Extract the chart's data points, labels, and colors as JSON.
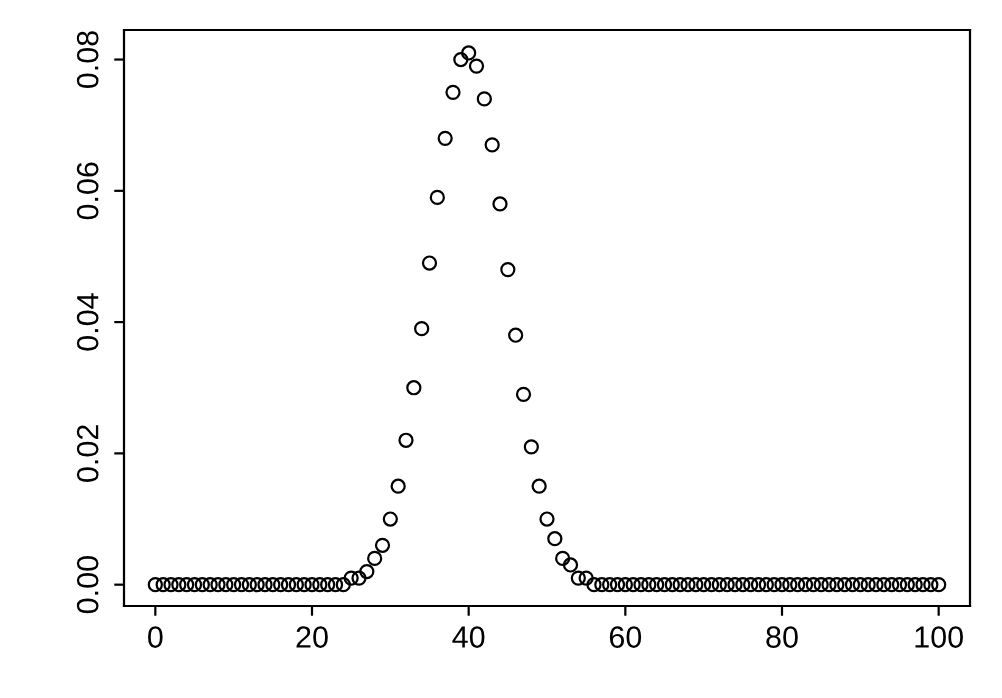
{
  "chart_data": {
    "type": "scatter",
    "marker": "circle",
    "grid": false,
    "x": [
      0,
      1,
      2,
      3,
      4,
      5,
      6,
      7,
      8,
      9,
      10,
      11,
      12,
      13,
      14,
      15,
      16,
      17,
      18,
      19,
      20,
      21,
      22,
      23,
      24,
      25,
      26,
      27,
      28,
      29,
      30,
      31,
      32,
      33,
      34,
      35,
      36,
      37,
      38,
      39,
      40,
      41,
      42,
      43,
      44,
      45,
      46,
      47,
      48,
      49,
      50,
      51,
      52,
      53,
      54,
      55,
      56,
      57,
      58,
      59,
      60,
      61,
      62,
      63,
      64,
      65,
      66,
      67,
      68,
      69,
      70,
      71,
      72,
      73,
      74,
      75,
      76,
      77,
      78,
      79,
      80,
      81,
      82,
      83,
      84,
      85,
      86,
      87,
      88,
      89,
      90,
      91,
      92,
      93,
      94,
      95,
      96,
      97,
      98,
      99,
      100
    ],
    "series": [
      {
        "color": "#000000",
        "values": [
          0,
          0,
          0,
          0,
          0,
          0,
          0,
          0,
          0,
          0,
          0,
          0,
          0,
          0,
          0,
          0,
          0,
          0,
          0,
          0,
          0,
          0,
          0,
          0,
          0,
          0.001,
          0.001,
          0.002,
          0.004,
          0.006,
          0.01,
          0.015,
          0.022,
          0.03,
          0.039,
          0.049,
          0.059,
          0.068,
          0.075,
          0.08,
          0.081,
          0.079,
          0.074,
          0.067,
          0.058,
          0.048,
          0.038,
          0.029,
          0.021,
          0.015,
          0.01,
          0.007,
          0.004,
          0.003,
          0.001,
          0.001,
          0,
          0,
          0,
          0,
          0,
          0,
          0,
          0,
          0,
          0,
          0,
          0,
          0,
          0,
          0,
          0,
          0,
          0,
          0,
          0,
          0,
          0,
          0,
          0,
          0,
          0,
          0,
          0,
          0,
          0,
          0,
          0,
          0,
          0,
          0,
          0,
          0,
          0,
          0,
          0,
          0,
          0,
          0,
          0,
          0
        ]
      }
    ],
    "xlim": [
      -4,
      104
    ],
    "ylim": [
      -0.00325,
      0.0845
    ],
    "xticks": [
      0,
      20,
      40,
      60,
      80,
      100
    ],
    "yticks": [
      {
        "value": 0,
        "label": "0.00"
      },
      {
        "value": 0.02,
        "label": "0.02"
      },
      {
        "value": 0.04,
        "label": "0.04"
      },
      {
        "value": 0.06,
        "label": "0.06"
      },
      {
        "value": 0.08,
        "label": "0.08"
      }
    ]
  }
}
